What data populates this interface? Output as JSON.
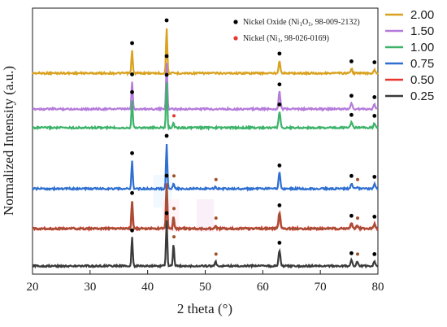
{
  "chart_data": {
    "type": "line",
    "title": "",
    "xlabel": "2 theta (°)",
    "ylabel": "Normalized Intensity (a.u.)",
    "xlim": [
      20,
      80
    ],
    "xticks": [
      20,
      30,
      40,
      50,
      60,
      70,
      80
    ],
    "grid": false,
    "legend_position": "right-outside",
    "series": [
      {
        "name": "2.00",
        "color": "#D9A11E",
        "offset": 5,
        "intensity": 1.0,
        "peaks": [
          [
            37.3,
            0.5
          ],
          [
            43.3,
            1.0
          ],
          [
            62.9,
            0.27
          ],
          [
            75.4,
            0.1
          ],
          [
            79.4,
            0.08
          ]
        ]
      },
      {
        "name": "1.50",
        "color": "#B57BDB",
        "offset": 4,
        "intensity": 1.0,
        "peaks": [
          [
            37.3,
            0.6
          ],
          [
            43.3,
            1.0
          ],
          [
            62.9,
            0.38
          ],
          [
            75.4,
            0.13
          ],
          [
            79.4,
            0.1
          ]
        ]
      },
      {
        "name": "1.00",
        "color": "#3DB36A",
        "offset": 3,
        "intensity": 1.0,
        "peaks": [
          [
            37.3,
            0.62
          ],
          [
            43.3,
            1.0
          ],
          [
            44.5,
            0.1
          ],
          [
            62.9,
            0.35
          ],
          [
            75.4,
            0.12
          ],
          [
            79.4,
            0.1
          ]
        ]
      },
      {
        "name": "0.75",
        "color": "#2E6FD1",
        "offset": 2,
        "intensity": 1.0,
        "peaks": [
          [
            37.3,
            0.62
          ],
          [
            43.3,
            1.0
          ],
          [
            44.5,
            0.12
          ],
          [
            51.8,
            0.04
          ],
          [
            62.9,
            0.35
          ],
          [
            75.4,
            0.12
          ],
          [
            76.4,
            0.04
          ],
          [
            79.4,
            0.1
          ]
        ]
      },
      {
        "name": "0.50",
        "color": "#E8362E",
        "overlay": "#8A5A3A",
        "offset": 1,
        "intensity": 1.0,
        "peaks": [
          [
            37.3,
            0.62
          ],
          [
            43.3,
            1.0
          ],
          [
            44.5,
            0.28
          ],
          [
            51.8,
            0.07
          ],
          [
            62.9,
            0.35
          ],
          [
            75.4,
            0.12
          ],
          [
            76.4,
            0.07
          ],
          [
            79.4,
            0.1
          ]
        ]
      },
      {
        "name": "0.25",
        "color": "#3A3A3A",
        "offset": 0,
        "intensity": 1.0,
        "peaks": [
          [
            37.3,
            0.62
          ],
          [
            43.3,
            1.0
          ],
          [
            44.5,
            0.48
          ],
          [
            51.8,
            0.1
          ],
          [
            62.9,
            0.35
          ],
          [
            75.4,
            0.12
          ],
          [
            76.4,
            0.1
          ],
          [
            79.4,
            0.1
          ]
        ]
      }
    ],
    "reference_phases": [
      {
        "label": "Nickel Oxide (Ni",
        "sub1": "1",
        "mid": "O",
        "sub2": "1",
        "tail": ", 98-009-2132)",
        "marker_color": "#000000",
        "positions": [
          37.3,
          43.3,
          62.9,
          75.4,
          79.4
        ]
      },
      {
        "label": "Nickel (Ni",
        "sub1": "1",
        "tail": ", 98-026-0169)",
        "marker_color": "#E8362E",
        "positions": [
          44.5,
          51.8,
          76.4
        ]
      }
    ]
  }
}
